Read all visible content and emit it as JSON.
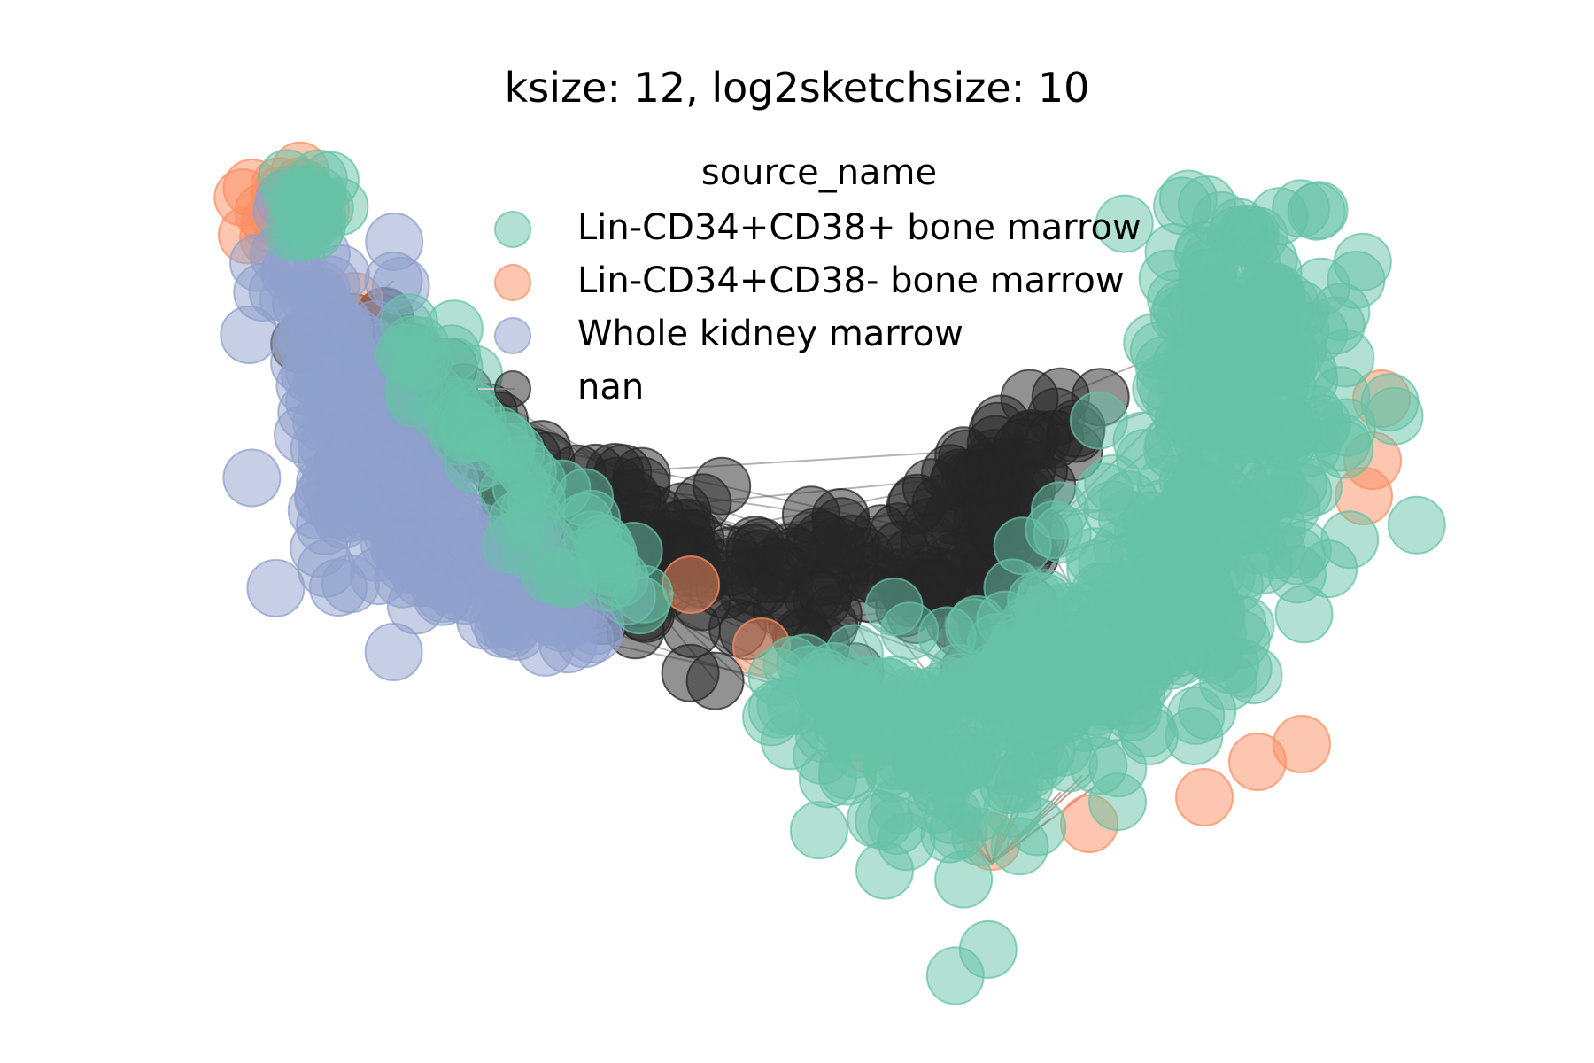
{
  "chart_data": {
    "type": "scatter",
    "title": "ksize: 12, log2sketchsize: 10",
    "xlabel": "",
    "ylabel": "",
    "axes_visible": false,
    "grid": false,
    "legend": {
      "title": "source_name",
      "placement": "top-center",
      "entries": [
        {
          "label": "Lin-CD34+CD38+ bone marrow",
          "color": "#66c2a5"
        },
        {
          "label": "Lin-CD34+CD38- bone marrow",
          "color": "#fc8d62"
        },
        {
          "label": "Whole kidney marrow",
          "color": "#8da0cb"
        },
        {
          "label": "nan",
          "color": "#262626"
        }
      ]
    },
    "series": [
      {
        "name": "Lin-CD34+CD38+ bone marrow",
        "color": "#66c2a5"
      },
      {
        "name": "Lin-CD34+CD38- bone marrow",
        "color": "#fc8d62"
      },
      {
        "name": "Whole kidney marrow",
        "color": "#8da0cb"
      },
      {
        "name": "nan",
        "color": "#262626"
      }
    ],
    "marker_alpha": 0.5,
    "edge_color": "#262626"
  }
}
